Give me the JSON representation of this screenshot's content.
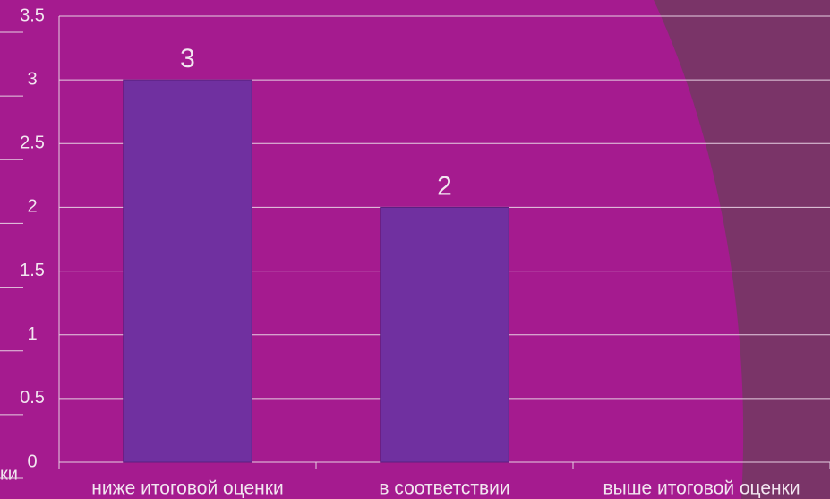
{
  "chart_data": {
    "type": "bar",
    "y_axis_label": "ки",
    "categories": [
      "ниже итоговой оценки",
      "в соответствии",
      "выше итоговой оценки"
    ],
    "values": [
      3,
      2,
      null
    ],
    "color": "#7030a0",
    "ylim": [
      0,
      3.5
    ],
    "yticks": [
      0,
      0.5,
      1,
      1.5,
      2,
      2.5,
      3,
      3.5
    ],
    "grid": true
  }
}
